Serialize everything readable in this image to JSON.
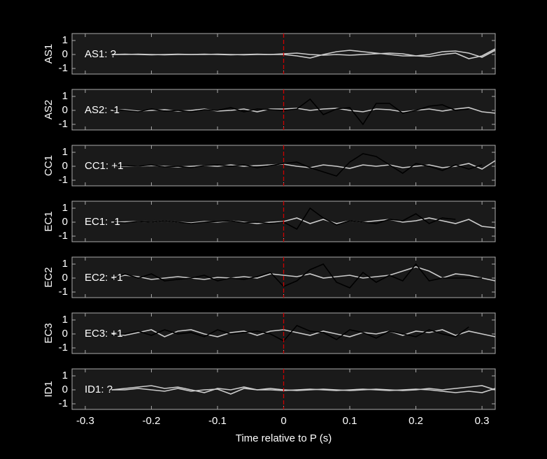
{
  "chart_data": [
    {
      "type": "line",
      "ylabel": "AS1",
      "annotation": "AS1: ?",
      "annotation_color": "#888888",
      "vline": 0,
      "vline_color": "#cc0000",
      "xlim": [
        -0.32,
        0.32
      ],
      "xticks": [
        -0.3,
        -0.2,
        -0.1,
        0,
        0.1,
        0.2,
        0.3
      ],
      "ylim": [
        -1.4,
        1.5
      ],
      "yticks": [
        -1,
        0,
        1
      ],
      "x": [
        -0.32,
        -0.3,
        -0.28,
        -0.26,
        -0.24,
        -0.22,
        -0.2,
        -0.18,
        -0.16,
        -0.14,
        -0.12,
        -0.1,
        -0.08,
        -0.06,
        -0.04,
        -0.02,
        0,
        0.02,
        0.04,
        0.06,
        0.08,
        0.1,
        0.12,
        0.14,
        0.16,
        0.18,
        0.2,
        0.22,
        0.24,
        0.26,
        0.28,
        0.3,
        0.32
      ],
      "series": [
        {
          "color": "#cccccc",
          "values": [
            null,
            null,
            null,
            0,
            0,
            0.02,
            0,
            -0.02,
            0,
            0,
            0.02,
            0,
            -0.02,
            0,
            0.02,
            0,
            0,
            -0.1,
            -0.25,
            0,
            0.2,
            0.3,
            0.2,
            0.1,
            0,
            -0.1,
            -0.1,
            0,
            0.2,
            0.25,
            0.1,
            -0.2,
            0.3
          ]
        },
        {
          "color": "#cccccc",
          "values": [
            null,
            null,
            null,
            0,
            0.02,
            0,
            -0.02,
            0,
            0.02,
            0,
            0,
            0.02,
            0,
            -0.02,
            0,
            0,
            0.05,
            0.1,
            0,
            -0.05,
            0,
            -0.05,
            0,
            0.05,
            0.1,
            0.05,
            -0.1,
            -0.15,
            0,
            0.1,
            -0.3,
            -0.1,
            0.4
          ]
        }
      ]
    },
    {
      "type": "line",
      "ylabel": "AS2",
      "annotation": "AS2: -1",
      "annotation_color": "#1a1aa6",
      "vline": 0,
      "vline_color": "#cc0000",
      "xlim": [
        -0.32,
        0.32
      ],
      "xticks": [
        -0.3,
        -0.2,
        -0.1,
        0,
        0.1,
        0.2,
        0.3
      ],
      "ylim": [
        -1.4,
        1.5
      ],
      "yticks": [
        -1,
        0,
        1
      ],
      "x": [
        -0.32,
        -0.3,
        -0.28,
        -0.26,
        -0.24,
        -0.22,
        -0.2,
        -0.18,
        -0.16,
        -0.14,
        -0.12,
        -0.1,
        -0.08,
        -0.06,
        -0.04,
        -0.02,
        0,
        0.02,
        0.04,
        0.06,
        0.08,
        0.1,
        0.12,
        0.14,
        0.16,
        0.18,
        0.2,
        0.22,
        0.24,
        0.26,
        0.28,
        0.3,
        0.32
      ],
      "series": [
        {
          "color": "#cccccc",
          "values": [
            null,
            null,
            null,
            0,
            0.05,
            -0.05,
            0,
            0.05,
            -0.05,
            0,
            0.1,
            -0.05,
            0,
            0.1,
            -0.1,
            0.1,
            0.1,
            0.15,
            0,
            0.1,
            0.15,
            0,
            -0.1,
            0.1,
            0.05,
            -0.1,
            0,
            0.1,
            -0.05,
            0.1,
            0.2,
            -0.1,
            -0.2
          ]
        },
        {
          "color": "#000000",
          "values": [
            null,
            null,
            null,
            0.05,
            0,
            -0.1,
            0.1,
            -0.05,
            0,
            -0.1,
            0.05,
            0,
            0.2,
            -0.1,
            0.1,
            0.05,
            0,
            0.1,
            0.8,
            -0.3,
            0.1,
            0.2,
            -1,
            0.5,
            0.5,
            -0.2,
            0,
            0.3,
            0.4,
            0,
            0.1,
            null,
            null
          ]
        }
      ]
    },
    {
      "type": "line",
      "ylabel": "CC1",
      "annotation": "CC1: +1",
      "annotation_color": "#b30000",
      "vline": 0,
      "vline_color": "#cc0000",
      "xlim": [
        -0.32,
        0.32
      ],
      "xticks": [
        -0.3,
        -0.2,
        -0.1,
        0,
        0.1,
        0.2,
        0.3
      ],
      "ylim": [
        -1.4,
        1.5
      ],
      "yticks": [
        -1,
        0,
        1
      ],
      "x": [
        -0.32,
        -0.3,
        -0.28,
        -0.26,
        -0.24,
        -0.22,
        -0.2,
        -0.18,
        -0.16,
        -0.14,
        -0.12,
        -0.1,
        -0.08,
        -0.06,
        -0.04,
        -0.02,
        0,
        0.02,
        0.04,
        0.06,
        0.08,
        0.1,
        0.12,
        0.14,
        0.16,
        0.18,
        0.2,
        0.22,
        0.24,
        0.26,
        0.28,
        0.3,
        0.32
      ],
      "series": [
        {
          "color": "#cccccc",
          "values": [
            null,
            null,
            null,
            0,
            0.02,
            0,
            0.05,
            0,
            -0.05,
            0,
            0.05,
            0,
            0.1,
            0,
            0.05,
            0.1,
            0.15,
            0,
            -0.1,
            0.1,
            0,
            -0.15,
            0.1,
            0,
            0.1,
            -0.1,
            0,
            0.1,
            -0.1,
            0,
            0.2,
            -0.2,
            0.4
          ]
        },
        {
          "color": "#000000",
          "values": [
            null,
            null,
            null,
            0,
            0.05,
            0,
            0.1,
            -0.05,
            0,
            -0.1,
            0.05,
            0.1,
            0,
            0.1,
            -0.1,
            0.05,
            0.2,
            0.3,
            -0.1,
            -0.4,
            -0.7,
            0.3,
            0.9,
            0.7,
            0.1,
            -0.5,
            0.2,
            0,
            -0.3,
            0.1,
            -0.2,
            0.1,
            null
          ]
        }
      ]
    },
    {
      "type": "line",
      "ylabel": "EC1",
      "annotation": "EC1: -1",
      "annotation_color": "#1a1aa6",
      "vline": 0,
      "vline_color": "#cc0000",
      "xlim": [
        -0.32,
        0.32
      ],
      "xticks": [
        -0.3,
        -0.2,
        -0.1,
        0,
        0.1,
        0.2,
        0.3
      ],
      "ylim": [
        -1.4,
        1.5
      ],
      "yticks": [
        -1,
        0,
        1
      ],
      "x": [
        -0.32,
        -0.3,
        -0.28,
        -0.26,
        -0.24,
        -0.22,
        -0.2,
        -0.18,
        -0.16,
        -0.14,
        -0.12,
        -0.1,
        -0.08,
        -0.06,
        -0.04,
        -0.02,
        0,
        0.02,
        0.04,
        0.06,
        0.08,
        0.1,
        0.12,
        0.14,
        0.16,
        0.18,
        0.2,
        0.22,
        0.24,
        0.26,
        0.28,
        0.3,
        0.32
      ],
      "series": [
        {
          "color": "#cccccc",
          "values": [
            null,
            null,
            null,
            0,
            0.02,
            0.05,
            0,
            0.1,
            0,
            -0.05,
            0.05,
            0,
            0.1,
            0,
            -0.1,
            0,
            0.05,
            0.3,
            -0.1,
            0.2,
            -0.1,
            0.1,
            0,
            0.1,
            0.2,
            0,
            0.1,
            0.3,
            0.1,
            -0.1,
            0.2,
            -0.3,
            -0.4
          ]
        },
        {
          "color": "#000000",
          "values": [
            null,
            null,
            null,
            0,
            -0.05,
            0.05,
            0,
            0.1,
            0,
            -0.1,
            0,
            0.05,
            0.1,
            -0.05,
            0,
            -0.1,
            0,
            -0.5,
            1,
            0.3,
            -0.2,
            0.1,
            0,
            -0.1,
            0.2,
            0.1,
            0.6,
            -0.1,
            0.3,
            0.2,
            null,
            null,
            null
          ]
        }
      ]
    },
    {
      "type": "line",
      "ylabel": "EC2",
      "annotation": "EC2: +1",
      "annotation_color": "#b30000",
      "vline": 0,
      "vline_color": "#cc0000",
      "xlim": [
        -0.32,
        0.32
      ],
      "xticks": [
        -0.3,
        -0.2,
        -0.1,
        0,
        0.1,
        0.2,
        0.3
      ],
      "ylim": [
        -1.4,
        1.5
      ],
      "yticks": [
        -1,
        0,
        1
      ],
      "x": [
        -0.32,
        -0.3,
        -0.28,
        -0.26,
        -0.24,
        -0.22,
        -0.2,
        -0.18,
        -0.16,
        -0.14,
        -0.12,
        -0.1,
        -0.08,
        -0.06,
        -0.04,
        -0.02,
        0,
        0.02,
        0.04,
        0.06,
        0.08,
        0.1,
        0.12,
        0.14,
        0.16,
        0.18,
        0.2,
        0.22,
        0.24,
        0.26,
        0.28,
        0.3,
        0.32
      ],
      "series": [
        {
          "color": "#cccccc",
          "values": [
            null,
            null,
            null,
            0,
            0.2,
            0.1,
            -0.1,
            0,
            0.1,
            0,
            -0.1,
            0.05,
            0,
            0.1,
            0,
            0.3,
            0.2,
            0.1,
            0.3,
            0,
            0.1,
            0.2,
            0,
            0.1,
            0.2,
            0.5,
            0.8,
            0.5,
            0,
            0.3,
            0.2,
            0,
            -0.2
          ]
        },
        {
          "color": "#000000",
          "values": [
            null,
            null,
            null,
            -0.1,
            0.3,
            0,
            0.3,
            -0.2,
            -0.1,
            0,
            0.2,
            -0.2,
            0,
            -0.1,
            0.1,
            0.4,
            -0.6,
            -0.2,
            0.6,
            1,
            -0.3,
            -0.7,
            0.4,
            -0.3,
            0.2,
            -0.2,
            1,
            -0.2,
            0,
            0,
            0,
            0,
            null
          ]
        }
      ]
    },
    {
      "type": "line",
      "ylabel": "EC3",
      "annotation": "EC3: +1",
      "annotation_color": "#b30000",
      "vline": 0,
      "vline_color": "#cc0000",
      "xlim": [
        -0.32,
        0.32
      ],
      "xticks": [
        -0.3,
        -0.2,
        -0.1,
        0,
        0.1,
        0.2,
        0.3
      ],
      "ylim": [
        -1.4,
        1.5
      ],
      "yticks": [
        -1,
        0,
        1
      ],
      "x": [
        -0.32,
        -0.3,
        -0.28,
        -0.26,
        -0.24,
        -0.22,
        -0.2,
        -0.18,
        -0.16,
        -0.14,
        -0.12,
        -0.1,
        -0.08,
        -0.06,
        -0.04,
        -0.02,
        0,
        0.02,
        0.04,
        0.06,
        0.08,
        0.1,
        0.12,
        0.14,
        0.16,
        0.18,
        0.2,
        0.22,
        0.24,
        0.26,
        0.28,
        0.3,
        0.32
      ],
      "series": [
        {
          "color": "#cccccc",
          "values": [
            null,
            null,
            null,
            0,
            -0.1,
            0.1,
            0.3,
            -0.2,
            0.2,
            0.3,
            0,
            -0.2,
            0.1,
            0.2,
            -0.1,
            0.2,
            0.3,
            0.1,
            -0.1,
            0.2,
            0,
            -0.2,
            0.1,
            0,
            0.2,
            -0.1,
            0.2,
            0.1,
            0.3,
            -0.1,
            0.2,
            0,
            -0.2
          ]
        },
        {
          "color": "#000000",
          "values": [
            null,
            null,
            null,
            -0.1,
            0,
            0.2,
            -0.1,
            0.3,
            0,
            0.1,
            -0.2,
            0.3,
            0,
            0.1,
            0.2,
            0,
            -0.5,
            0.6,
            0.2,
            0.1,
            -0.4,
            0.3,
            0.1,
            -0.3,
            0.2,
            0,
            -0.2,
            0.3,
            0,
            -0.2,
            0.5,
            null,
            null
          ]
        }
      ]
    },
    {
      "type": "line",
      "ylabel": "ID1",
      "annotation": "ID1: ?",
      "annotation_color": "#888888",
      "vline": 0,
      "vline_color": "#cc0000",
      "xlabel": "Time relative to P (s)",
      "xlim": [
        -0.32,
        0.32
      ],
      "xticks": [
        -0.3,
        -0.2,
        -0.1,
        0,
        0.1,
        0.2,
        0.3
      ],
      "ylim": [
        -1.4,
        1.5
      ],
      "yticks": [
        -1,
        0,
        1
      ],
      "x": [
        -0.32,
        -0.3,
        -0.28,
        -0.26,
        -0.24,
        -0.22,
        -0.2,
        -0.18,
        -0.16,
        -0.14,
        -0.12,
        -0.1,
        -0.08,
        -0.06,
        -0.04,
        -0.02,
        0,
        0.02,
        0.04,
        0.06,
        0.08,
        0.1,
        0.12,
        0.14,
        0.16,
        0.18,
        0.2,
        0.22,
        0.24,
        0.26,
        0.28,
        0.3,
        0.32
      ],
      "series": [
        {
          "color": "#cccccc",
          "values": [
            null,
            null,
            null,
            0,
            0.1,
            0.2,
            0.3,
            0.1,
            0.2,
            0,
            -0.2,
            0.1,
            0,
            0.2,
            0,
            0.1,
            0,
            -0.05,
            0,
            0.05,
            0,
            -0.05,
            0,
            0.05,
            0,
            -0.05,
            0,
            0.1,
            0,
            0.1,
            0.2,
            0.3,
            0
          ]
        },
        {
          "color": "#cccccc",
          "values": [
            null,
            null,
            null,
            0,
            0,
            0.1,
            0,
            -0.1,
            0.1,
            -0.1,
            0,
            0.05,
            -0.3,
            0.1,
            0,
            0,
            -0.05,
            0,
            0.05,
            0,
            -0.05,
            0,
            0.05,
            0,
            -0.05,
            0,
            0.05,
            0,
            -0.1,
            -0.2,
            -0.1,
            -0.2,
            0.1
          ]
        }
      ]
    }
  ]
}
